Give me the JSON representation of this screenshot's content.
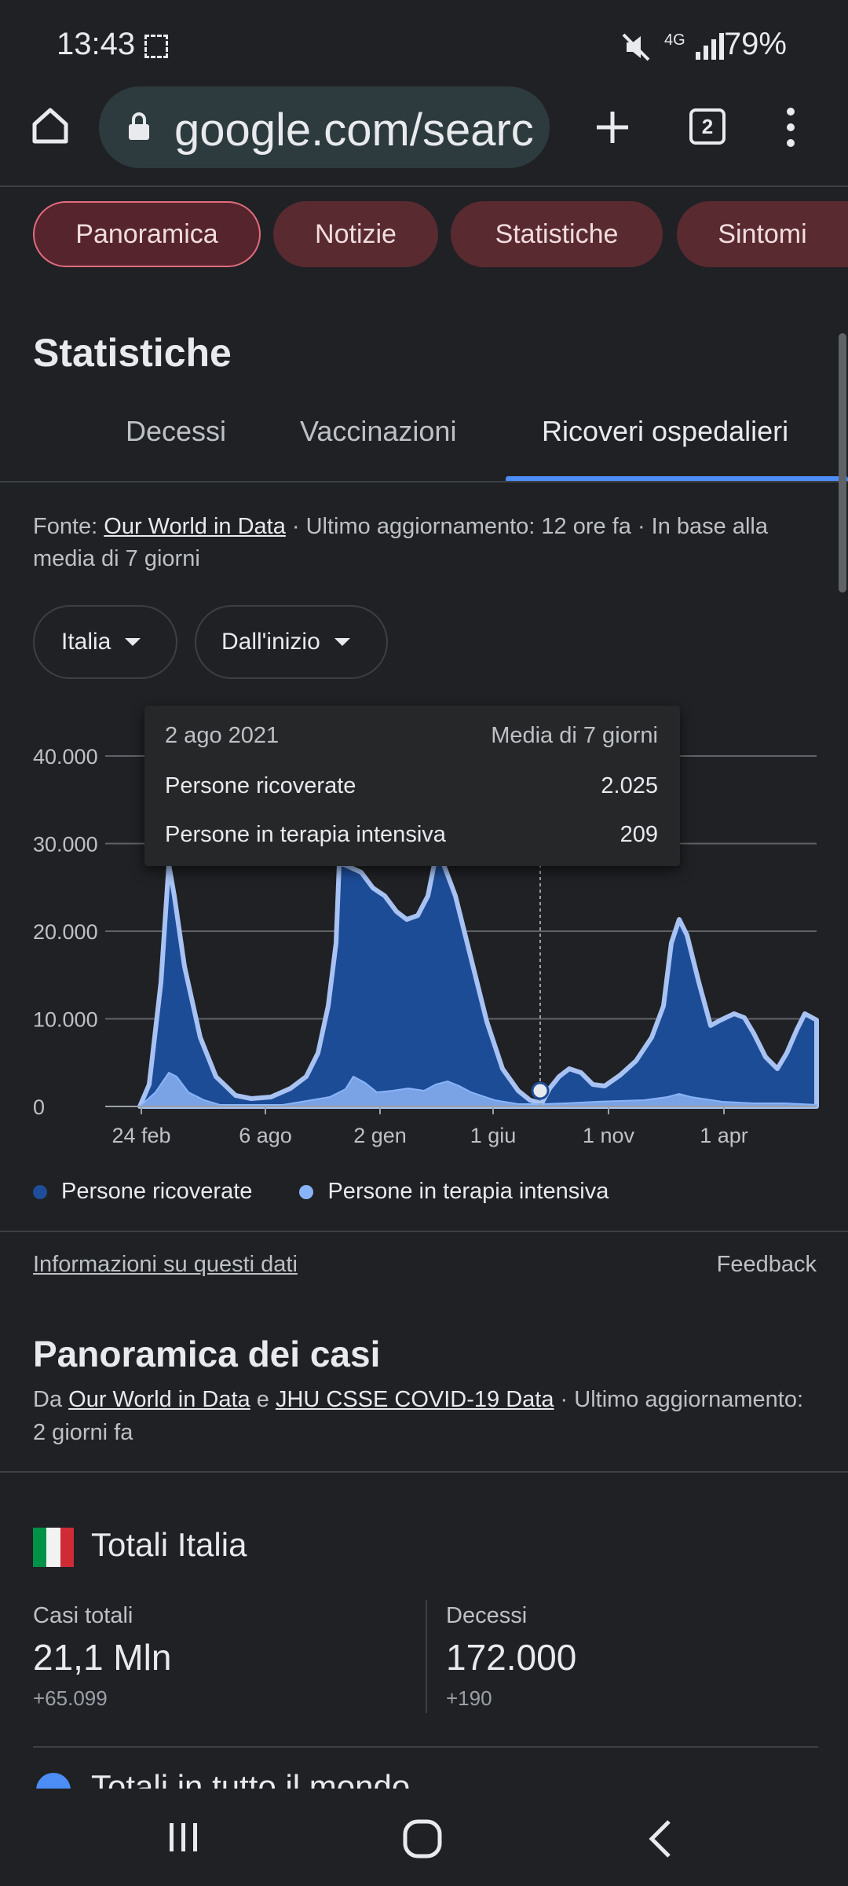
{
  "status_bar": {
    "time": "13:43",
    "battery": "79%"
  },
  "browser": {
    "url": "google.com/search",
    "tab_count": "2"
  },
  "chips": [
    "Panoramica",
    "Notizie",
    "Statistiche",
    "Sintomi"
  ],
  "section": {
    "title": "Statistiche",
    "tabs": [
      "Decessi",
      "Vaccinazioni",
      "Ricoveri ospedalieri"
    ],
    "active_tab": "Ricoveri ospedalieri",
    "source_prefix": "Fonte: ",
    "source_link": "Our World in Data",
    "source_rest": " · Ultimo aggiornamento: 12 ore fa · In base alla media di 7 giorni",
    "region_dropdown": "Italia",
    "range_dropdown": "Dall'inizio"
  },
  "tooltip": {
    "date": "2 ago 2021",
    "mode": "Media di 7 giorni",
    "row1_label": "Persone ricoverate",
    "row1_value": "2.025",
    "row2_label": "Persone in terapia intensiva",
    "row2_value": "209"
  },
  "chart_data": {
    "type": "area",
    "y_ticks": [
      "40.000",
      "30.000",
      "20.000",
      "10.000",
      "0"
    ],
    "x_ticks": [
      "24 feb",
      "6 ago",
      "2 gen",
      "1 giu",
      "1 nov",
      "1 apr"
    ],
    "ylim": [
      0,
      40000
    ],
    "series": [
      {
        "name": "Persone ricoverate",
        "color": "#1e4d9a"
      },
      {
        "name": "Persone in terapia intensiva",
        "color": "#8ab4f8"
      }
    ]
  },
  "legend": [
    "Persone ricoverate",
    "Persone in terapia intensiva"
  ],
  "links": {
    "info": "Informazioni su questi dati",
    "feedback": "Feedback"
  },
  "cases": {
    "title": "Panoramica dei casi",
    "src_da": "Da ",
    "src_link1": "Our World in Data",
    "src_e": " e ",
    "src_link2": "JHU CSSE COVID-19 Data",
    "src_rest": " · Ultimo aggiornamento: 2 giorni fa",
    "totals_title": "Totali Italia",
    "total_cases_label": "Casi totali",
    "total_cases_value": "21,1 Mln",
    "total_cases_delta": "+65.099",
    "deaths_label": "Decessi",
    "deaths_value": "172.000",
    "deaths_delta": "+190",
    "world_title": "Totali in tutto il mondo"
  }
}
